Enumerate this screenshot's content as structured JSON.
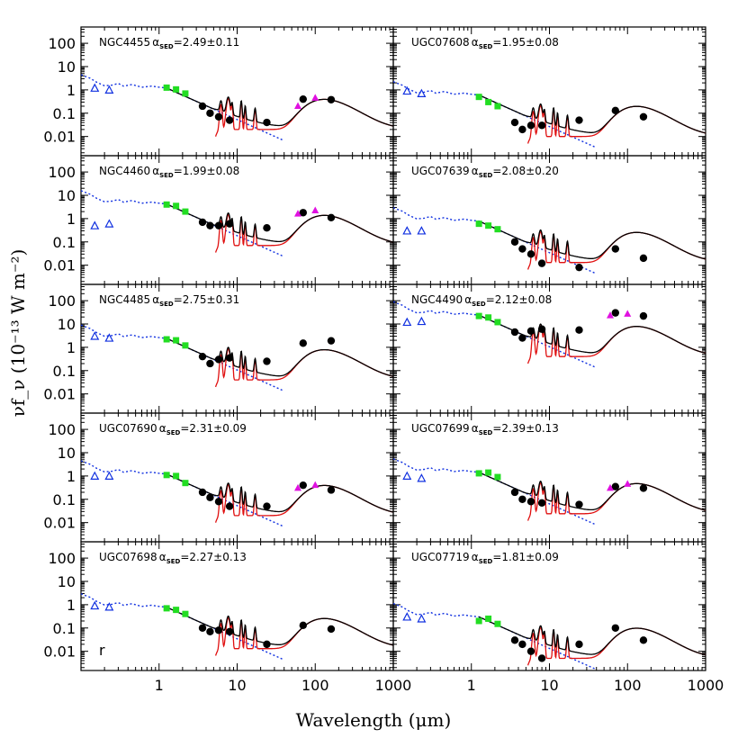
{
  "figure": {
    "ylabel": "νf_ν (10⁻¹³ W m⁻²)",
    "xlabel": "Wavelength (μm)",
    "letter": "r"
  },
  "chart_data": {
    "type": "scatter",
    "xscale": "log",
    "yscale": "log",
    "xlim": [
      0.1,
      1000
    ],
    "ylim": [
      0.0015,
      500
    ],
    "x_ticks": [
      "1",
      "10",
      "100",
      "1000"
    ],
    "y_ticks": [
      "100",
      "10",
      "1",
      "0.1",
      "0.01"
    ],
    "panels": [
      {
        "galaxy": "NGC4455",
        "alpha_text": "=2.49±0.11",
        "nir": [
          [
            1.25,
            1.25
          ],
          [
            1.65,
            1.05
          ],
          [
            2.17,
            0.7
          ]
        ],
        "irac": [
          [
            3.6,
            0.2
          ],
          [
            4.5,
            0.1
          ],
          [
            5.8,
            0.07
          ],
          [
            8.0,
            0.05
          ],
          [
            24,
            0.04
          ],
          [
            70,
            0.4
          ],
          [
            160,
            0.38
          ]
        ],
        "iras": [
          [
            60,
            0.2
          ],
          [
            100,
            0.45
          ]
        ],
        "uv": [
          [
            0.15,
            1.2
          ],
          [
            0.23,
            1.0
          ]
        ],
        "model_scale": 1.0
      },
      {
        "galaxy": "UGC07608",
        "alpha_text": "=1.95±0.08",
        "nir": [
          [
            1.25,
            0.5
          ],
          [
            1.65,
            0.3
          ],
          [
            2.17,
            0.2
          ]
        ],
        "irac": [
          [
            3.6,
            0.04
          ],
          [
            4.5,
            0.02
          ],
          [
            5.8,
            0.03
          ],
          [
            8.0,
            0.03
          ],
          [
            24,
            0.05
          ],
          [
            70,
            0.13
          ],
          [
            160,
            0.07
          ]
        ],
        "iras": [],
        "uv": [
          [
            0.15,
            0.9
          ],
          [
            0.23,
            0.7
          ]
        ],
        "model_scale": 0.5
      },
      {
        "galaxy": "NGC4460",
        "alpha_text": "=1.99±0.08",
        "nir": [
          [
            1.25,
            4
          ],
          [
            1.65,
            3.5
          ],
          [
            2.17,
            2
          ]
        ],
        "irac": [
          [
            3.6,
            0.7
          ],
          [
            4.5,
            0.5
          ],
          [
            5.8,
            0.5
          ],
          [
            8.0,
            0.6
          ],
          [
            24,
            0.4
          ],
          [
            70,
            1.8
          ],
          [
            160,
            1.1
          ]
        ],
        "iras": [
          [
            60,
            1.6
          ],
          [
            100,
            2.2
          ]
        ],
        "uv": [
          [
            0.15,
            0.5
          ],
          [
            0.23,
            0.6
          ]
        ],
        "model_scale": 3.5
      },
      {
        "galaxy": "UGC07639",
        "alpha_text": "=2.08±0.20",
        "nir": [
          [
            1.25,
            0.6
          ],
          [
            1.65,
            0.5
          ],
          [
            2.17,
            0.35
          ]
        ],
        "irac": [
          [
            3.6,
            0.1
          ],
          [
            4.5,
            0.05
          ],
          [
            5.8,
            0.03
          ],
          [
            8.0,
            0.012
          ],
          [
            24,
            0.008
          ],
          [
            70,
            0.05
          ],
          [
            160,
            0.02
          ]
        ],
        "iras": [],
        "uv": [
          [
            0.15,
            0.3
          ],
          [
            0.23,
            0.3
          ]
        ],
        "model_scale": 0.65
      },
      {
        "galaxy": "NGC4485",
        "alpha_text": "=2.75±0.31",
        "nir": [
          [
            1.25,
            2.2
          ],
          [
            1.65,
            2.0
          ],
          [
            2.17,
            1.2
          ]
        ],
        "irac": [
          [
            3.6,
            0.4
          ],
          [
            4.5,
            0.2
          ],
          [
            5.8,
            0.3
          ],
          [
            8.0,
            0.35
          ],
          [
            24,
            0.25
          ],
          [
            70,
            1.5
          ],
          [
            160,
            1.9
          ]
        ],
        "iras": [],
        "uv": [
          [
            0.15,
            3.0
          ],
          [
            0.23,
            2.5
          ]
        ],
        "model_scale": 2.0
      },
      {
        "galaxy": "NGC4490",
        "alpha_text": "=2.12±0.08",
        "nir": [
          [
            1.25,
            22
          ],
          [
            1.65,
            19
          ],
          [
            2.17,
            12
          ]
        ],
        "irac": [
          [
            3.6,
            4.5
          ],
          [
            4.5,
            2.5
          ],
          [
            5.8,
            5
          ],
          [
            8.0,
            6
          ],
          [
            24,
            5.5
          ],
          [
            70,
            30
          ],
          [
            160,
            22
          ]
        ],
        "iras": [
          [
            60,
            23
          ],
          [
            100,
            27
          ]
        ],
        "uv": [
          [
            0.15,
            12
          ],
          [
            0.23,
            13
          ]
        ],
        "model_scale": 20.0
      },
      {
        "galaxy": "UGC07690",
        "alpha_text": "=2.31±0.09",
        "nir": [
          [
            1.25,
            1.1
          ],
          [
            1.65,
            1.0
          ],
          [
            2.17,
            0.5
          ]
        ],
        "irac": [
          [
            3.6,
            0.2
          ],
          [
            4.5,
            0.12
          ],
          [
            5.8,
            0.08
          ],
          [
            8.0,
            0.05
          ],
          [
            24,
            0.05
          ],
          [
            70,
            0.4
          ],
          [
            160,
            0.25
          ]
        ],
        "iras": [
          [
            60,
            0.3
          ],
          [
            100,
            0.4
          ]
        ],
        "uv": [
          [
            0.15,
            1.0
          ],
          [
            0.23,
            1.0
          ]
        ],
        "model_scale": 1.0
      },
      {
        "galaxy": "UGC07699",
        "alpha_text": "=2.39±0.13",
        "nir": [
          [
            1.25,
            1.3
          ],
          [
            1.65,
            1.4
          ],
          [
            2.17,
            0.9
          ]
        ],
        "irac": [
          [
            3.6,
            0.2
          ],
          [
            4.5,
            0.1
          ],
          [
            5.8,
            0.08
          ],
          [
            8.0,
            0.07
          ],
          [
            24,
            0.06
          ],
          [
            70,
            0.35
          ],
          [
            160,
            0.3
          ]
        ],
        "iras": [
          [
            60,
            0.3
          ],
          [
            100,
            0.45
          ]
        ],
        "uv": [
          [
            0.15,
            1.0
          ],
          [
            0.23,
            0.8
          ]
        ],
        "model_scale": 1.2
      },
      {
        "galaxy": "UGC07698",
        "alpha_text": "=2.27±0.13",
        "nir": [
          [
            1.25,
            0.7
          ],
          [
            1.65,
            0.6
          ],
          [
            2.17,
            0.4
          ]
        ],
        "irac": [
          [
            3.6,
            0.1
          ],
          [
            4.5,
            0.07
          ],
          [
            5.8,
            0.08
          ],
          [
            8.0,
            0.07
          ],
          [
            24,
            0.02
          ],
          [
            70,
            0.13
          ],
          [
            160,
            0.09
          ]
        ],
        "iras": [],
        "uv": [
          [
            0.15,
            0.9
          ],
          [
            0.23,
            0.8
          ]
        ],
        "model_scale": 0.65
      },
      {
        "galaxy": "UGC07719",
        "alpha_text": "=1.81±0.09",
        "nir": [
          [
            1.25,
            0.2
          ],
          [
            1.65,
            0.25
          ],
          [
            2.17,
            0.15
          ]
        ],
        "irac": [
          [
            3.6,
            0.03
          ],
          [
            4.5,
            0.02
          ],
          [
            5.8,
            0.01
          ],
          [
            8.0,
            0.005
          ],
          [
            24,
            0.02
          ],
          [
            70,
            0.1
          ],
          [
            160,
            0.03
          ]
        ],
        "iras": [],
        "uv": [
          [
            0.15,
            0.3
          ],
          [
            0.23,
            0.25
          ]
        ],
        "model_scale": 0.25
      }
    ]
  }
}
